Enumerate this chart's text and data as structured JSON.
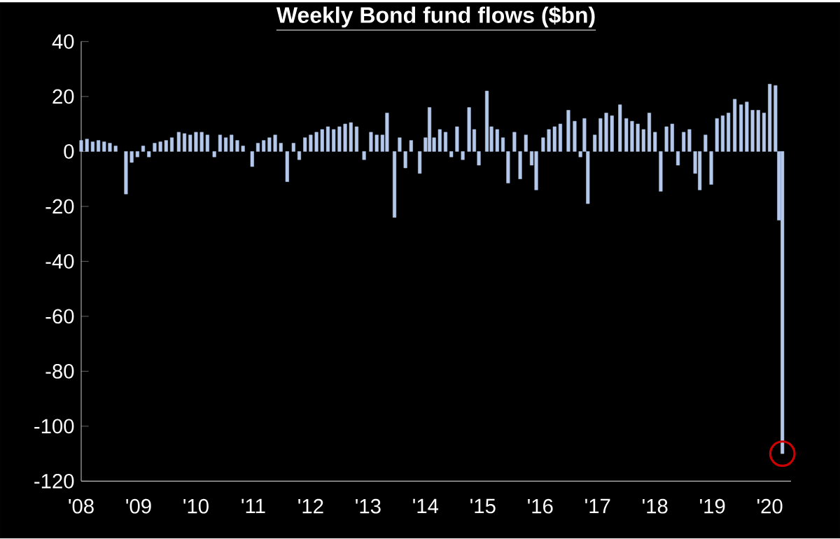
{
  "chart_data": {
    "type": "bar",
    "title": "Weekly Bond fund flows ($bn)",
    "color": "#b4c8ec",
    "x": [
      2008.0,
      2008.1,
      2008.2,
      2008.3,
      2008.4,
      2008.5,
      2008.6,
      2008.78,
      2008.88,
      2008.98,
      2009.08,
      2009.18,
      2009.28,
      2009.38,
      2009.48,
      2009.58,
      2009.7,
      2009.8,
      2009.9,
      2010.0,
      2010.1,
      2010.2,
      2010.32,
      2010.42,
      2010.52,
      2010.62,
      2010.72,
      2010.82,
      2010.98,
      2011.08,
      2011.18,
      2011.28,
      2011.38,
      2011.48,
      2011.59,
      2011.7,
      2011.8,
      2011.9,
      2012.0,
      2012.1,
      2012.2,
      2012.3,
      2012.4,
      2012.5,
      2012.6,
      2012.7,
      2012.8,
      2012.93,
      2013.05,
      2013.15,
      2013.25,
      2013.33,
      2013.46,
      2013.55,
      2013.65,
      2013.75,
      2013.9,
      2014.0,
      2014.07,
      2014.15,
      2014.25,
      2014.35,
      2014.45,
      2014.55,
      2014.65,
      2014.76,
      2014.85,
      2014.93,
      2015.07,
      2015.15,
      2015.25,
      2015.35,
      2015.44,
      2015.55,
      2015.65,
      2015.75,
      2015.85,
      2015.93,
      2016.05,
      2016.15,
      2016.25,
      2016.35,
      2016.49,
      2016.6,
      2016.7,
      2016.77,
      2016.83,
      2016.95,
      2017.05,
      2017.15,
      2017.25,
      2017.39,
      2017.5,
      2017.6,
      2017.7,
      2017.8,
      2017.9,
      2018.0,
      2018.1,
      2018.2,
      2018.3,
      2018.4,
      2018.5,
      2018.6,
      2018.7,
      2018.78,
      2018.88,
      2018.98,
      2019.08,
      2019.18,
      2019.28,
      2019.39,
      2019.5,
      2019.6,
      2019.7,
      2019.8,
      2019.9,
      2020.0,
      2020.1,
      2020.16,
      2020.22
    ],
    "values": [
      4,
      4.5,
      3.5,
      4,
      3.5,
      3,
      2,
      -15.5,
      -4,
      -2,
      2,
      -2,
      3,
      3.5,
      4,
      5,
      7,
      6.5,
      6,
      7,
      7,
      6,
      -2,
      6,
      5,
      6,
      4,
      2,
      -5.5,
      3,
      4,
      5,
      6,
      3,
      -11,
      3,
      -3,
      5,
      6,
      7,
      8,
      9,
      8,
      9,
      10,
      10.5,
      9,
      -3,
      7,
      6,
      6,
      14,
      -24,
      5,
      -6,
      4,
      -8,
      5,
      16,
      5,
      8,
      7,
      -2,
      9,
      -3,
      16,
      8,
      -5,
      22,
      9,
      8,
      5,
      -11.5,
      7,
      -10,
      6,
      -5,
      -14,
      5,
      8,
      9,
      10,
      15,
      11,
      -2,
      12,
      -19,
      6,
      12,
      14,
      13,
      17,
      12,
      11,
      10,
      8,
      14,
      7,
      -14.5,
      9,
      10,
      -5,
      7,
      8,
      -8,
      -14,
      6,
      -12,
      12,
      13,
      14,
      19,
      17,
      18,
      15,
      15,
      14,
      24.5,
      24,
      -25,
      -110
    ],
    "xlim": [
      2008.0,
      2020.37
    ],
    "ylim": [
      -120,
      40
    ],
    "xticks": [
      {
        "value": 2008,
        "label": "'08"
      },
      {
        "value": 2009,
        "label": "'09"
      },
      {
        "value": 2010,
        "label": "'10"
      },
      {
        "value": 2011,
        "label": "'11"
      },
      {
        "value": 2012,
        "label": "'12"
      },
      {
        "value": 2013,
        "label": "'13"
      },
      {
        "value": 2014,
        "label": "'14"
      },
      {
        "value": 2015,
        "label": "'15"
      },
      {
        "value": 2016,
        "label": "'16"
      },
      {
        "value": 2017,
        "label": "'17"
      },
      {
        "value": 2018,
        "label": "'18"
      },
      {
        "value": 2019,
        "label": "'19"
      },
      {
        "value": 2020,
        "label": "'20"
      }
    ],
    "yticks": [
      -120,
      -100,
      -80,
      -60,
      -40,
      -20,
      0,
      20,
      40
    ]
  }
}
